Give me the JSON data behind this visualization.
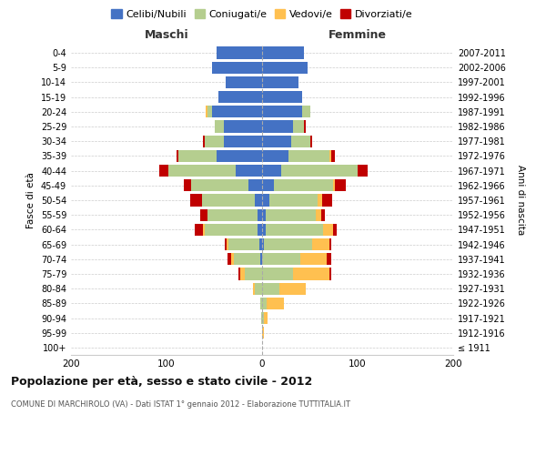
{
  "age_groups": [
    "100+",
    "95-99",
    "90-94",
    "85-89",
    "80-84",
    "75-79",
    "70-74",
    "65-69",
    "60-64",
    "55-59",
    "50-54",
    "45-49",
    "40-44",
    "35-39",
    "30-34",
    "25-29",
    "20-24",
    "15-19",
    "10-14",
    "5-9",
    "0-4"
  ],
  "birth_years": [
    "≤ 1911",
    "1912-1916",
    "1917-1921",
    "1922-1926",
    "1927-1931",
    "1932-1936",
    "1937-1941",
    "1942-1946",
    "1947-1951",
    "1952-1956",
    "1957-1961",
    "1962-1966",
    "1967-1971",
    "1972-1976",
    "1977-1981",
    "1982-1986",
    "1987-1991",
    "1992-1996",
    "1997-2001",
    "2002-2006",
    "2007-2011"
  ],
  "male": {
    "celibi": [
      0,
      0,
      0,
      0,
      0,
      0,
      2,
      3,
      5,
      5,
      8,
      14,
      28,
      48,
      40,
      40,
      52,
      46,
      38,
      52,
      48
    ],
    "coniugati": [
      0,
      0,
      1,
      2,
      8,
      18,
      28,
      32,
      55,
      52,
      55,
      60,
      70,
      40,
      20,
      10,
      5,
      0,
      0,
      0,
      0
    ],
    "vedovi": [
      0,
      0,
      0,
      0,
      2,
      5,
      2,
      2,
      2,
      0,
      0,
      0,
      0,
      0,
      0,
      0,
      2,
      0,
      0,
      0,
      0
    ],
    "divorziati": [
      0,
      0,
      0,
      0,
      0,
      2,
      4,
      2,
      8,
      8,
      12,
      8,
      10,
      2,
      2,
      0,
      0,
      0,
      0,
      0,
      0
    ]
  },
  "female": {
    "nubili": [
      0,
      0,
      0,
      0,
      0,
      0,
      0,
      2,
      4,
      4,
      8,
      12,
      20,
      28,
      30,
      32,
      42,
      42,
      38,
      48,
      44
    ],
    "coniugate": [
      0,
      0,
      2,
      5,
      18,
      32,
      40,
      50,
      60,
      52,
      50,
      62,
      80,
      42,
      20,
      12,
      8,
      0,
      0,
      0,
      0
    ],
    "vedove": [
      0,
      2,
      4,
      18,
      28,
      38,
      28,
      18,
      10,
      6,
      5,
      2,
      0,
      2,
      0,
      0,
      0,
      0,
      0,
      0,
      0
    ],
    "divorziate": [
      0,
      0,
      0,
      0,
      0,
      2,
      4,
      2,
      4,
      4,
      10,
      12,
      10,
      4,
      2,
      2,
      0,
      0,
      0,
      0,
      0
    ]
  },
  "colors": {
    "celibi": "#4472C4",
    "coniugati": "#b5ce8f",
    "vedovi": "#ffc050",
    "divorziati": "#c00000"
  },
  "title": "Popolazione per età, sesso e stato civile - 2012",
  "subtitle": "COMUNE DI MARCHIROLO (VA) - Dati ISTAT 1° gennaio 2012 - Elaborazione TUTTITALIA.IT",
  "xlabel_left": "Maschi",
  "xlabel_right": "Femmine",
  "ylabel_left": "Fasce di età",
  "ylabel_right": "Anni di nascita",
  "xlim": 200,
  "legend_labels": [
    "Celibi/Nubili",
    "Coniugati/e",
    "Vedovi/e",
    "Divorziati/e"
  ]
}
